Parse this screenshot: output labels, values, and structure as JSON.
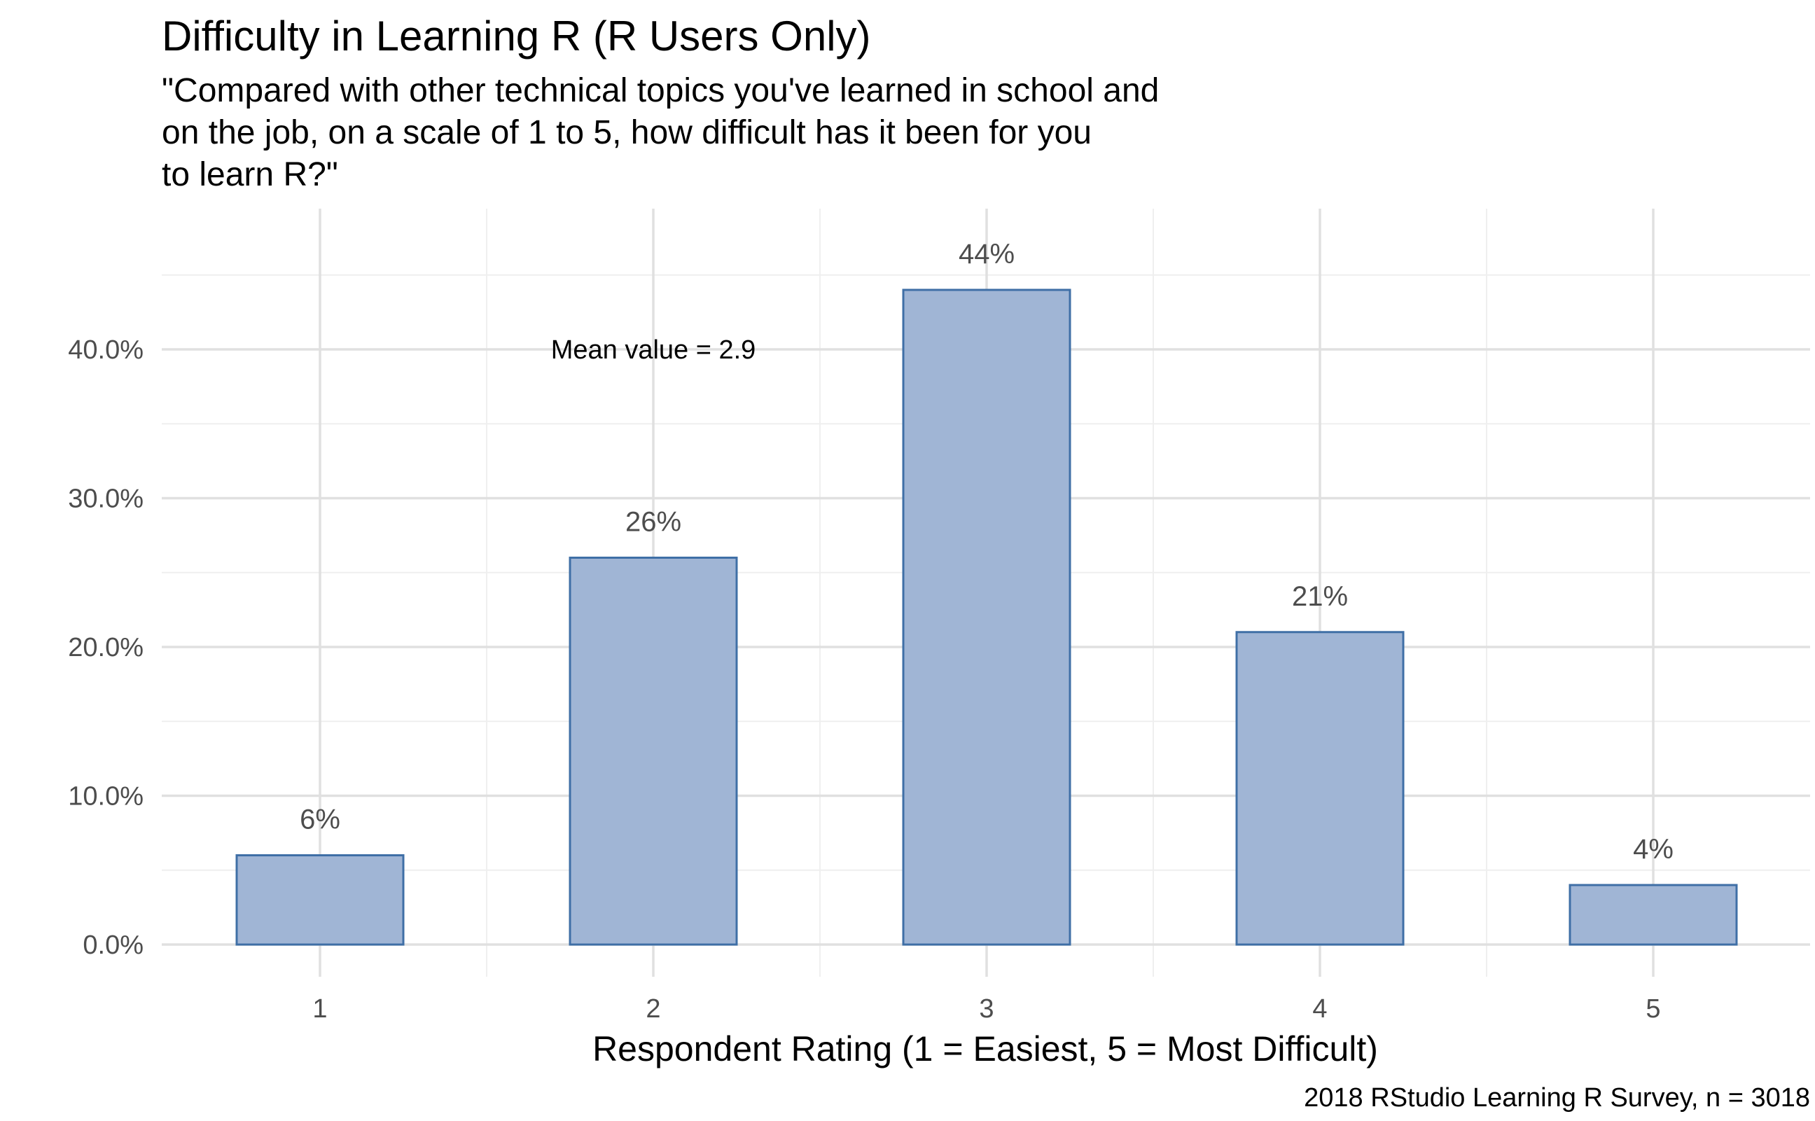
{
  "chart_data": {
    "type": "bar",
    "title": "Difficulty in Learning R (R Users Only)",
    "subtitle_lines": [
      "\"Compared with other technical topics you've learned in school and",
      "on the job, on a scale of 1 to 5, how difficult has it been for you",
      "to learn R?\""
    ],
    "categories": [
      "1",
      "2",
      "3",
      "4",
      "5"
    ],
    "values": [
      6,
      26,
      44,
      21,
      4
    ],
    "value_labels": [
      "6%",
      "26%",
      "44%",
      "21%",
      "4%"
    ],
    "xlabel": "Respondent Rating (1 = Easiest, 5 = Most Difficult)",
    "ylabel": "",
    "y_ticks": [
      0,
      10,
      20,
      30,
      40
    ],
    "y_tick_labels": [
      "0.0%",
      "10.0%",
      "20.0%",
      "30.0%",
      "40.0%"
    ],
    "ylim": [
      0,
      47
    ],
    "grid": true,
    "legend": "none",
    "annotation": {
      "text": "Mean value = 2.9",
      "x_value": 2,
      "y_value": 40
    },
    "caption": "2018 RStudio Learning R Survey, n = 3018",
    "colors": {
      "bar_fill": "#a0b5d5",
      "bar_stroke": "#3f6fa6",
      "grid_major": "#e0e0e0",
      "grid_minor": "#efefef",
      "tick_text": "#4d4d4d",
      "text": "#000000"
    }
  }
}
